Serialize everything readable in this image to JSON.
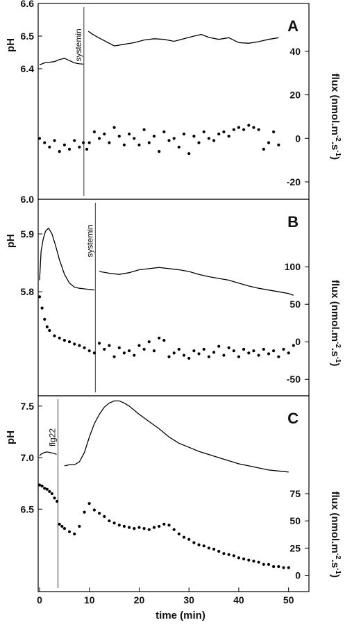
{
  "chart_data": [
    {
      "panel": "A",
      "type": "line",
      "ylabel": "pH",
      "y2label": "flux (nmol.m-2.s-1)",
      "ylim": [
        6.0,
        6.6
      ],
      "yticks": [
        6.0,
        6.4,
        6.5,
        6.6
      ],
      "y2lim": [
        -28,
        62
      ],
      "y2ticks": [
        -20,
        0,
        20,
        40
      ],
      "xlim": [
        0,
        52
      ],
      "marker": {
        "label": "systemin",
        "x": 8.9
      },
      "series": [
        {
          "kind": "ph",
          "segments": [
            {
              "x": [
                0,
                1,
                2,
                3,
                4,
                5,
                6,
                7,
                8,
                8.8
              ],
              "y": [
                6.412,
                6.418,
                6.42,
                6.422,
                6.428,
                6.432,
                6.425,
                6.418,
                6.415,
                6.414
              ]
            },
            {
              "x": [
                9.8,
                10.5,
                11.5,
                12.5,
                13.5,
                15,
                17,
                19,
                21,
                23,
                25,
                27,
                29,
                31,
                32.5,
                34,
                36,
                38,
                40,
                42,
                44,
                46,
                48
              ],
              "y": [
                6.515,
                6.507,
                6.498,
                6.49,
                6.482,
                6.47,
                6.475,
                6.48,
                6.488,
                6.492,
                6.49,
                6.484,
                6.492,
                6.5,
                6.505,
                6.496,
                6.49,
                6.495,
                6.48,
                6.478,
                6.483,
                6.49,
                6.495
              ]
            }
          ]
        },
        {
          "kind": "flux",
          "segments": [
            {
              "x": [
                0,
                1,
                2,
                3,
                4,
                5,
                6,
                7,
                8,
                8.8
              ],
              "y": [
                0,
                -2,
                -4,
                -1,
                -6,
                -3,
                -5,
                -1,
                -4,
                -2
              ]
            },
            {
              "x": [
                9.5,
                10,
                11,
                12,
                13,
                14,
                15,
                16,
                17,
                18,
                19,
                20,
                21,
                22,
                23,
                24,
                25,
                26,
                27,
                28,
                29,
                30,
                31,
                32,
                33,
                34,
                35,
                36,
                37,
                38,
                39,
                40,
                41,
                42,
                43,
                44,
                45,
                46,
                47,
                48
              ],
              "y": [
                -5,
                -2,
                3,
                0,
                2,
                -2,
                5,
                1,
                -3,
                2,
                0,
                -3,
                4,
                -2,
                1,
                -6,
                3,
                -1,
                0,
                -4,
                2,
                -7,
                1,
                -2,
                3,
                0,
                -1,
                2,
                3,
                1,
                4,
                5,
                4,
                6,
                5,
                4,
                -5,
                -2,
                3,
                -3
              ]
            }
          ]
        }
      ]
    },
    {
      "panel": "B",
      "type": "line",
      "ylabel": "pH",
      "y2label": "flux (nmol.m-2.s-1)",
      "ylim": [
        5.62,
        5.96
      ],
      "yticks": [
        5.8,
        5.9
      ],
      "y2lim": [
        -72,
        190
      ],
      "y2ticks": [
        -50,
        0,
        50,
        100
      ],
      "xlim": [
        0,
        52
      ],
      "marker": {
        "label": "systemin",
        "x": 11.2
      },
      "series": [
        {
          "kind": "ph",
          "segments": [
            {
              "x": [
                0,
                0.3,
                0.7,
                1.2,
                1.8,
                2.5,
                3.2,
                4,
                5,
                6,
                7,
                8,
                9,
                10,
                11
              ],
              "y": [
                5.82,
                5.87,
                5.89,
                5.905,
                5.91,
                5.9,
                5.88,
                5.855,
                5.83,
                5.815,
                5.808,
                5.806,
                5.805,
                5.804,
                5.803
              ]
            },
            {
              "x": [
                12,
                14,
                16,
                18,
                20,
                22,
                24,
                26,
                28,
                30,
                32,
                34,
                36,
                38,
                40,
                42,
                44,
                46,
                48,
                50,
                51
              ],
              "y": [
                5.835,
                5.832,
                5.83,
                5.833,
                5.838,
                5.84,
                5.842,
                5.84,
                5.838,
                5.835,
                5.83,
                5.826,
                5.823,
                5.82,
                5.815,
                5.81,
                5.806,
                5.803,
                5.8,
                5.797,
                5.794
              ]
            }
          ]
        },
        {
          "kind": "flux",
          "segments": [
            {
              "x": [
                0,
                0.5,
                1,
                1.5,
                2,
                3,
                4,
                5,
                6,
                7,
                8,
                9,
                10,
                11
              ],
              "y": [
                60,
                45,
                30,
                20,
                15,
                8,
                5,
                2,
                0,
                -3,
                -5,
                -8,
                -12,
                -15
              ]
            },
            {
              "x": [
                12,
                13,
                14,
                15,
                16,
                17,
                18,
                19,
                20,
                21,
                22,
                23,
                24,
                25,
                26,
                27,
                28,
                29,
                30,
                31,
                32,
                33,
                34,
                35,
                36,
                37,
                38,
                39,
                40,
                41,
                42,
                43,
                44,
                45,
                46,
                47,
                48,
                49,
                50,
                51
              ],
              "y": [
                -2,
                -10,
                -5,
                -20,
                -8,
                -15,
                -12,
                -18,
                -5,
                -10,
                0,
                -12,
                5,
                2,
                -20,
                -15,
                -10,
                -18,
                -22,
                -12,
                -16,
                -10,
                -20,
                -14,
                -6,
                -18,
                -8,
                -12,
                -20,
                -10,
                -15,
                -12,
                -18,
                -10,
                -16,
                -12,
                -20,
                -10,
                -15,
                -5
              ]
            }
          ]
        }
      ]
    },
    {
      "panel": "C",
      "type": "line",
      "ylabel": "pH",
      "y2label": "flux (nmol.m-2.s-1)",
      "xlabel": "time (min)",
      "ylim": [
        5.7,
        7.6
      ],
      "yticks": [
        6.5,
        7.0,
        7.5
      ],
      "y2lim": [
        -15,
        165
      ],
      "y2ticks": [
        0,
        25,
        50,
        75
      ],
      "xlim": [
        0,
        52
      ],
      "xticks": [
        0,
        10,
        20,
        30,
        40,
        50
      ],
      "marker": {
        "label": "flg22",
        "x": 3.7
      },
      "series": [
        {
          "kind": "ph",
          "segments": [
            {
              "x": [
                0,
                0.5,
                1,
                1.5,
                2,
                2.5,
                3,
                3.4
              ],
              "y": [
                7.02,
                7.04,
                7.05,
                7.055,
                7.05,
                7.045,
                7.04,
                7.03
              ]
            },
            {
              "x": [
                5,
                6,
                7,
                8,
                9,
                10,
                11,
                12,
                13,
                14,
                15,
                16,
                17,
                18,
                19,
                20,
                22,
                24,
                26,
                28,
                30,
                32,
                34,
                36,
                38,
                40,
                42,
                44,
                46,
                48,
                50
              ],
              "y": [
                6.92,
                6.93,
                6.93,
                6.96,
                7.05,
                7.2,
                7.33,
                7.42,
                7.49,
                7.53,
                7.55,
                7.55,
                7.53,
                7.5,
                7.46,
                7.42,
                7.35,
                7.28,
                7.2,
                7.14,
                7.1,
                7.06,
                7.03,
                7.0,
                6.97,
                6.94,
                6.92,
                6.9,
                6.88,
                6.87,
                6.86
              ]
            }
          ]
        },
        {
          "kind": "flux",
          "segments": [
            {
              "x": [
                0,
                0.5,
                1,
                1.5,
                2,
                2.5,
                3,
                3.5
              ],
              "y": [
                83,
                82,
                80,
                79,
                77,
                75,
                71,
                68
              ]
            },
            {
              "x": [
                4,
                4.5,
                5,
                6,
                7,
                8,
                9,
                10,
                11,
                12,
                13,
                14,
                15,
                16,
                17,
                18,
                19,
                20,
                21,
                22,
                23,
                24,
                25,
                26,
                27,
                28,
                29,
                30,
                31,
                32,
                33,
                34,
                35,
                36,
                37,
                38,
                39,
                40,
                41,
                42,
                43,
                44,
                45,
                46,
                47,
                48,
                49,
                50
              ],
              "y": [
                47,
                45,
                43,
                40,
                38,
                45,
                58,
                66,
                60,
                57,
                54,
                50,
                48,
                46,
                45,
                44,
                43,
                44,
                43,
                42,
                44,
                45,
                47,
                46,
                42,
                38,
                35,
                33,
                30,
                28,
                27,
                25,
                24,
                22,
                20,
                19,
                18,
                16,
                15,
                14,
                13,
                12,
                10,
                10,
                8,
                8,
                7,
                7
              ]
            }
          ]
        }
      ]
    }
  ]
}
